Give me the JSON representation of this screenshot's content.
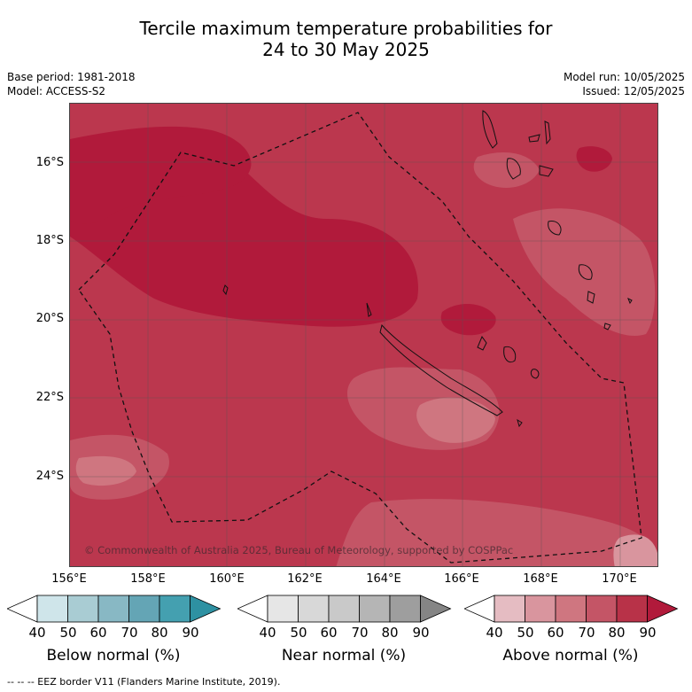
{
  "title_line1": "Tercile maximum temperature probabilities for",
  "title_line2": "24 to 30 May 2025",
  "base_period": "Base period: 1981-2018",
  "model": "Model: ACCESS-S2",
  "model_run": "Model run: 10/05/2025",
  "issued": "Issued: 12/05/2025",
  "lat_ticks": [
    "16°S",
    "18°S",
    "20°S",
    "22°S",
    "24°S"
  ],
  "lon_ticks": [
    "156°E",
    "158°E",
    "160°E",
    "162°E",
    "164°E",
    "166°E",
    "168°E",
    "170°E"
  ],
  "copyright": "© Commonwealth of Australia 2025, Bureau of Meteorology, supported by COSPPac",
  "colorbars": [
    {
      "label": "Below normal (%)",
      "ticks": [
        "40",
        "50",
        "60",
        "70",
        "80",
        "90"
      ],
      "colors": [
        "#ffffff",
        "#cfe5ea",
        "#a9ccd3",
        "#88b8c4",
        "#64a5b5",
        "#44a0b0",
        "#2e91a2"
      ]
    },
    {
      "label": "Near normal (%)",
      "ticks": [
        "40",
        "50",
        "60",
        "70",
        "80",
        "90"
      ],
      "colors": [
        "#ffffff",
        "#e6e6e6",
        "#d8d8d8",
        "#c9c9c9",
        "#b5b5b5",
        "#9e9e9e",
        "#858585"
      ]
    },
    {
      "label": "Above normal (%)",
      "ticks": [
        "40",
        "50",
        "60",
        "70",
        "80",
        "90"
      ],
      "colors": [
        "#ffffff",
        "#e5bcc2",
        "#d9959e",
        "#cf7680",
        "#c45566",
        "#b83248",
        "#b11a3b"
      ]
    }
  ],
  "footer": "--  --  -- EEZ border V11 (Flanders Marine Institute, 2019).",
  "map_colors": {
    "c70": "#c45566",
    "c80": "#b83248",
    "c90": "#b11a3b",
    "c60": "#cf7680"
  }
}
